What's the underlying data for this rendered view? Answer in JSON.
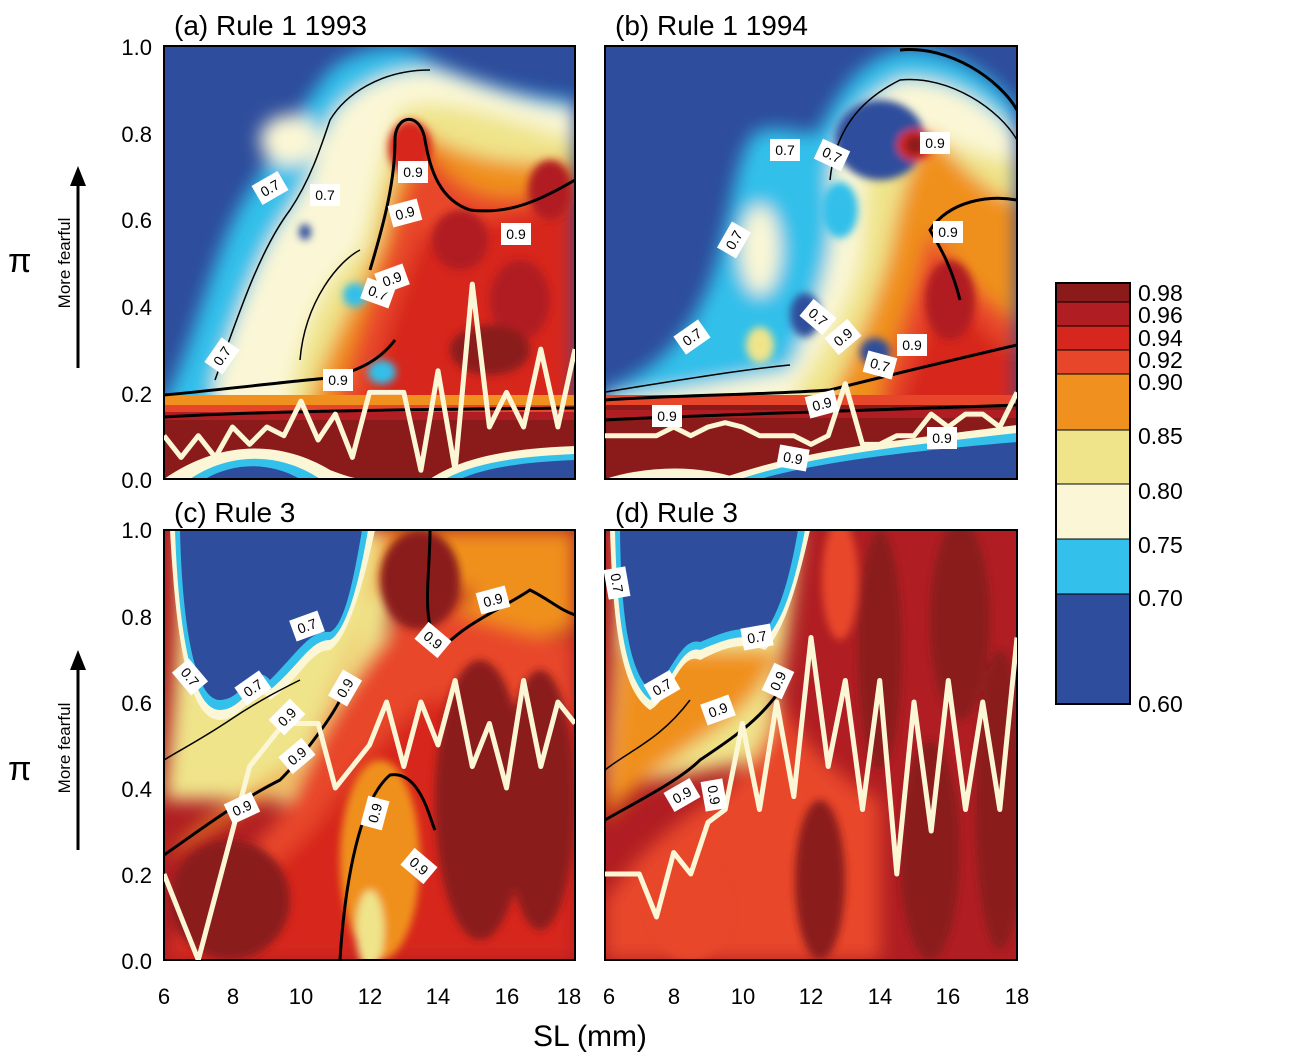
{
  "chart_data": {
    "type": "heatmap",
    "shared": {
      "xlabel": "SL (mm)",
      "ylabel": "π",
      "ylabel_annotation": "More fearful",
      "xlim": [
        6,
        18
      ],
      "ylim": [
        0,
        1
      ],
      "xticks": [
        "6",
        "8",
        "10",
        "12",
        "14",
        "16",
        "18"
      ],
      "yticks": [
        "0.0",
        "0.2",
        "0.4",
        "0.6",
        "0.8",
        "1.0"
      ],
      "colorbar": {
        "levels": [
          "0.98",
          "0.96",
          "0.94",
          "0.92",
          "0.90",
          "0.85",
          "0.80",
          "0.75",
          "0.70",
          "0.60"
        ],
        "bands": [
          {
            "from": 0.96,
            "to": 0.98,
            "color": "#8b1a1a"
          },
          {
            "from": 0.94,
            "to": 0.96,
            "color": "#b01e23"
          },
          {
            "from": 0.92,
            "to": 0.94,
            "color": "#d7261e"
          },
          {
            "from": 0.9,
            "to": 0.92,
            "color": "#e8462a"
          },
          {
            "from": 0.85,
            "to": 0.9,
            "color": "#f0901e"
          },
          {
            "from": 0.8,
            "to": 0.85,
            "color": "#efe48a"
          },
          {
            "from": 0.75,
            "to": 0.8,
            "color": "#fbf7d6"
          },
          {
            "from": 0.7,
            "to": 0.75,
            "color": "#33c0ea"
          },
          {
            "from": 0.6,
            "to": 0.7,
            "color": "#2e4d9c"
          }
        ]
      },
      "line_color": "#fbf7d6",
      "contour_labels": [
        "0.7",
        "0.9"
      ]
    },
    "panels": [
      {
        "title": "(a) Rule 1  1993",
        "line": {
          "x": [
            6,
            6.5,
            7,
            7.5,
            8,
            8.5,
            9,
            9.5,
            10,
            10.5,
            11,
            11.5,
            12,
            12.5,
            13,
            13.5,
            14,
            14.5,
            15,
            15.5,
            16,
            16.5,
            17,
            17.5,
            18
          ],
          "y": [
            0.1,
            0.05,
            0.1,
            0.05,
            0.12,
            0.08,
            0.12,
            0.1,
            0.18,
            0.09,
            0.15,
            0.05,
            0.2,
            0.2,
            0.2,
            0.02,
            0.25,
            0.02,
            0.45,
            0.12,
            0.2,
            0.12,
            0.3,
            0.12,
            0.3
          ]
        }
      },
      {
        "title": "(b) Rule 1   1994",
        "line": {
          "x": [
            6,
            6.5,
            7,
            7.5,
            8,
            8.5,
            9,
            9.5,
            10,
            10.5,
            11,
            11.5,
            12,
            12.5,
            13,
            13.5,
            14,
            14.5,
            15,
            15.5,
            16,
            16.5,
            17,
            17.5,
            18
          ],
          "y": [
            0.1,
            0.1,
            0.1,
            0.1,
            0.12,
            0.1,
            0.12,
            0.13,
            0.12,
            0.1,
            0.1,
            0.1,
            0.08,
            0.1,
            0.22,
            0.08,
            0.08,
            0.1,
            0.1,
            0.15,
            0.12,
            0.15,
            0.15,
            0.12,
            0.2
          ]
        }
      },
      {
        "title": "(c) Rule 3",
        "line": {
          "x": [
            6,
            6.5,
            7,
            7.5,
            8,
            8.5,
            9,
            9.5,
            10,
            10.5,
            11,
            11.5,
            12,
            12.5,
            13,
            13.5,
            14,
            14.5,
            15,
            15.5,
            16,
            16.5,
            17,
            17.5,
            18
          ],
          "y": [
            0.2,
            0.1,
            0.0,
            0.15,
            0.3,
            0.45,
            0.5,
            0.55,
            0.55,
            0.55,
            0.4,
            0.45,
            0.5,
            0.6,
            0.45,
            0.6,
            0.5,
            0.65,
            0.45,
            0.55,
            0.4,
            0.65,
            0.45,
            0.6,
            0.55
          ]
        }
      },
      {
        "title": "(d) Rule 3",
        "line": {
          "x": [
            6,
            6.5,
            7,
            7.5,
            8,
            8.5,
            9,
            9.5,
            10,
            10.5,
            11,
            11.5,
            12,
            12.5,
            13,
            13.5,
            14,
            14.5,
            15,
            15.5,
            16,
            16.5,
            17,
            17.5,
            18
          ],
          "y": [
            0.2,
            0.2,
            0.2,
            0.1,
            0.25,
            0.2,
            0.32,
            0.35,
            0.55,
            0.35,
            0.6,
            0.38,
            0.75,
            0.45,
            0.65,
            0.35,
            0.65,
            0.2,
            0.6,
            0.3,
            0.65,
            0.35,
            0.6,
            0.35,
            0.75
          ]
        }
      }
    ]
  }
}
